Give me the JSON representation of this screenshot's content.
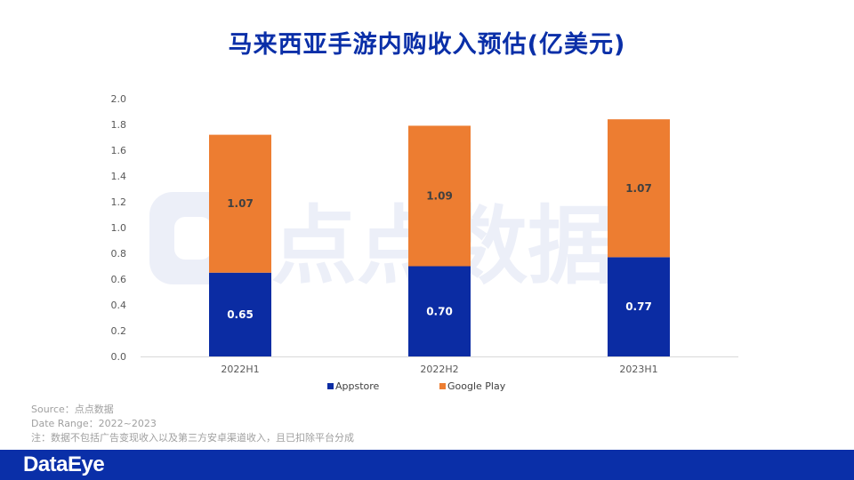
{
  "page": {
    "title": "马来西亚手游内购收入预估(亿美元)"
  },
  "watermark": {
    "text": "点点数据"
  },
  "notes": {
    "source": "Source：点点数据",
    "date_range": "Date Range：2022~2023",
    "note": "注：数据不包括广告变现收入以及第三方安卓渠道收入，且已扣除平台分成"
  },
  "footer": {
    "brand": "DataEye"
  },
  "colors": {
    "appstore": "#0b2ca3",
    "googleplay": "#ed7d31",
    "title": "#0a2fa8"
  },
  "chart_data": {
    "type": "bar",
    "stacked": true,
    "title": "马来西亚手游内购收入预估(亿美元)",
    "categories": [
      "2022H1",
      "2022H2",
      "2023H1"
    ],
    "series": [
      {
        "name": "Appstore",
        "values": [
          0.65,
          0.7,
          0.77
        ],
        "labels": [
          "0.65",
          "0.70",
          "0.77"
        ]
      },
      {
        "name": "Google Play",
        "values": [
          1.07,
          1.09,
          1.07
        ],
        "labels": [
          "1.07",
          "1.09",
          "1.07"
        ]
      }
    ],
    "yticks": [
      "0.0",
      "0.2",
      "0.4",
      "0.6",
      "0.8",
      "1.0",
      "1.2",
      "1.4",
      "1.6",
      "1.8",
      "2.0"
    ],
    "ylim": [
      0,
      2.0
    ],
    "xlabel": "",
    "ylabel": "",
    "legend_position": "bottom",
    "grid": false
  }
}
